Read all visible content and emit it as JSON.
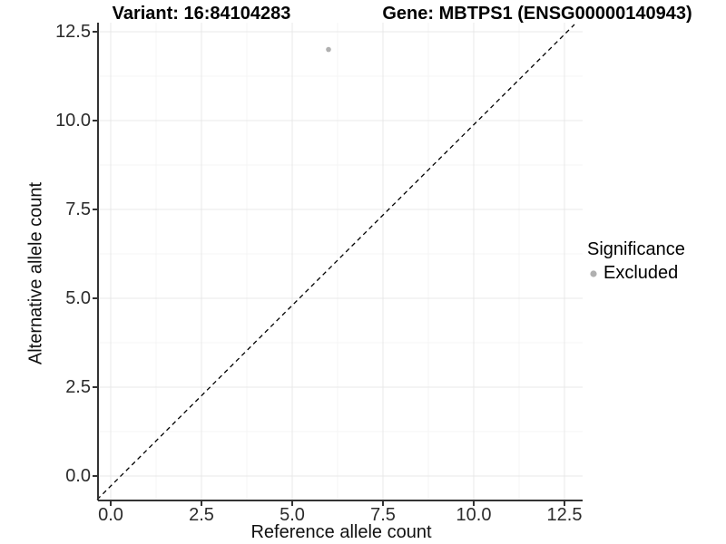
{
  "titles": {
    "variant": "Variant: 16:84104283",
    "gene": "Gene: MBTPS1 (ENSG00000140943)"
  },
  "x_axis": {
    "label": "Reference allele count",
    "ticks": [
      "0.0",
      "2.5",
      "5.0",
      "7.5",
      "10.0",
      "12.5"
    ],
    "tick_values": [
      0,
      2.5,
      5,
      7.5,
      10,
      12.5
    ]
  },
  "y_axis": {
    "label": "Alternative allele count",
    "ticks": [
      "0.0",
      "2.5",
      "5.0",
      "7.5",
      "10.0",
      "12.5"
    ],
    "tick_values": [
      0,
      2.5,
      5,
      7.5,
      10,
      12.5
    ]
  },
  "legend": {
    "title": "Significance",
    "items": [
      {
        "label": "Excluded",
        "color": "#b0b0b0"
      }
    ]
  },
  "colors": {
    "point": "#b0b0b0",
    "grid_major": "#e8e8e8",
    "grid_minor": "#f4f4f4",
    "axis_line": "#333333",
    "tick_mark": "#333333",
    "reference_line": "#000000"
  },
  "chart_data": {
    "type": "scatter",
    "title_left": "Variant: 16:84104283",
    "title_right": "Gene: MBTPS1 (ENSG00000140943)",
    "xlabel": "Reference allele count",
    "ylabel": "Alternative allele count",
    "xlim": [
      0,
      12.5
    ],
    "ylim": [
      0,
      12.5
    ],
    "major_tick_interval": 2.5,
    "minor_grid_interval": 1.25,
    "grid": {
      "major": true,
      "minor": true
    },
    "series": [
      {
        "name": "Excluded",
        "color": "#b0b0b0",
        "points": [
          {
            "x": 6,
            "y": 12
          }
        ]
      }
    ],
    "reference_line": {
      "kind": "identity",
      "slope": 1,
      "intercept": 0,
      "style": "dashed",
      "color": "#000000"
    },
    "legend": {
      "title": "Significance",
      "position": "right",
      "entries": [
        "Excluded"
      ]
    }
  }
}
